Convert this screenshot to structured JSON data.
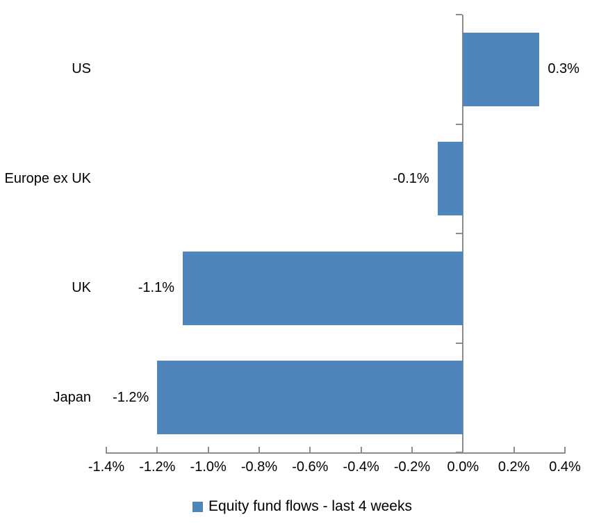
{
  "chart_data": {
    "type": "bar",
    "orientation": "horizontal",
    "title": "",
    "unit": "%",
    "categories": [
      "US",
      "Europe ex UK",
      "UK",
      "Japan"
    ],
    "series": [
      {
        "name": "Equity fund flows - last 4 weeks",
        "values": [
          0.3,
          -0.1,
          -1.1,
          -1.2
        ],
        "labels": [
          "0.3%",
          "-0.1%",
          "-1.1%",
          "-1.2%"
        ]
      }
    ],
    "xlim": [
      -1.4,
      0.4
    ],
    "x_tick_values": [
      -1.4,
      -1.2,
      -1.0,
      -0.8,
      -0.6,
      -0.4,
      -0.2,
      0.0,
      0.2,
      0.4
    ],
    "x_tick_labels": [
      "-1.4%",
      "-1.2%",
      "-1.0%",
      "-0.8%",
      "-0.6%",
      "-0.4%",
      "-0.2%",
      "0.0%",
      "0.2%",
      "0.4%"
    ],
    "grid": false,
    "legend": {
      "position": "bottom",
      "entries": [
        "Equity fund flows - last 4 weeks"
      ]
    },
    "colors": {
      "bar": "#4E86BC",
      "axis": "#8C8C8C",
      "text": "#000000",
      "background": "#FFFFFF"
    }
  }
}
